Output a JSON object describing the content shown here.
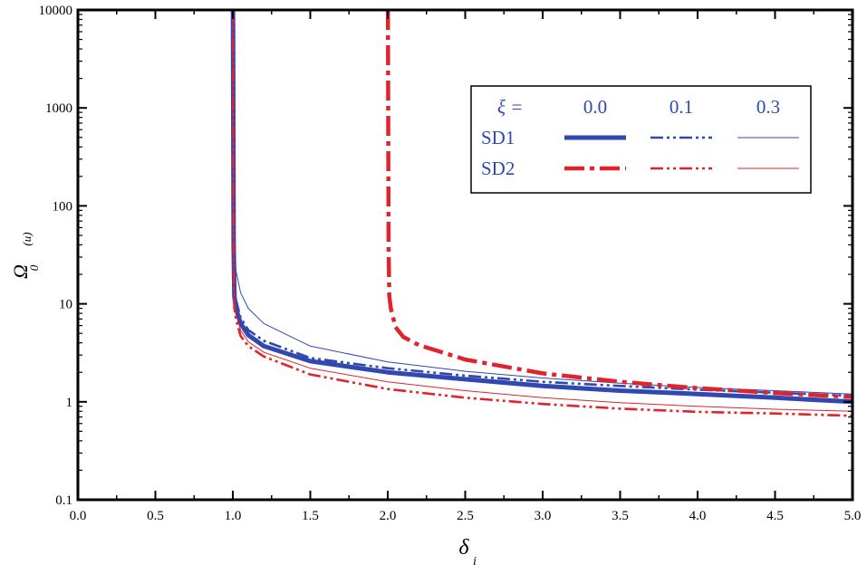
{
  "chart_data": {
    "type": "line",
    "xlabel": "δ",
    "xlabel_sub": "i",
    "ylabel": "Ω",
    "ylabel_sub": "0",
    "ylabel_sup": "(u)",
    "xlim": [
      0.0,
      5.0
    ],
    "ylim": [
      0.1,
      10000
    ],
    "yscale": "log",
    "grid": false,
    "legend_position": "top-right",
    "x_tick_labels": [
      "0.0",
      "0.5",
      "1.0",
      "1.5",
      "2.0",
      "2.5",
      "3.0",
      "3.5",
      "4.0",
      "4.5",
      "5.0"
    ],
    "y_tick_labels": [
      "0.1",
      "1",
      "10",
      "100",
      "1000",
      "10000"
    ],
    "legend": {
      "header_label": "ξ =",
      "columns": [
        "0.0",
        "0.1",
        "0.3"
      ],
      "rows": [
        "SD1",
        "SD2"
      ]
    },
    "colors": {
      "SD1": "#3048b0",
      "SD2": "#e0242c"
    },
    "series": [
      {
        "group": "SD1",
        "xi": "0.0",
        "style": "solid-thick",
        "x": [
          1.001,
          1.005,
          1.01,
          1.02,
          1.05,
          1.1,
          1.2,
          1.5,
          2.0,
          2.5,
          3.0,
          3.5,
          4.0,
          4.5,
          5.0
        ],
        "y": [
          10000,
          40,
          12,
          9,
          6.3,
          4.8,
          3.7,
          2.6,
          2.0,
          1.7,
          1.45,
          1.3,
          1.2,
          1.1,
          1.0
        ]
      },
      {
        "group": "SD1",
        "xi": "0.1",
        "style": "dash-dot-dot",
        "x": [
          1.001,
          1.005,
          1.01,
          1.02,
          1.05,
          1.1,
          1.2,
          1.5,
          2.0,
          2.5,
          3.0,
          3.5,
          4.0,
          4.5,
          5.0
        ],
        "y": [
          10000,
          60,
          16,
          11,
          7.2,
          5.4,
          4.2,
          2.8,
          2.2,
          1.85,
          1.6,
          1.45,
          1.33,
          1.24,
          1.15
        ]
      },
      {
        "group": "SD1",
        "xi": "0.3",
        "style": "thin",
        "x": [
          1.001,
          1.005,
          1.01,
          1.02,
          1.05,
          1.1,
          1.2,
          1.5,
          2.0,
          2.5,
          3.0,
          3.5,
          4.0,
          4.5,
          5.0
        ],
        "y": [
          10000,
          200,
          40,
          22,
          13,
          9,
          6.3,
          3.7,
          2.55,
          2.05,
          1.75,
          1.55,
          1.4,
          1.3,
          1.2
        ]
      },
      {
        "group": "SD2",
        "xi": "0.0",
        "style": "dash-dot-thick",
        "x": [
          2.001,
          2.005,
          2.01,
          2.02,
          2.05,
          2.1,
          2.2,
          2.5,
          3.0,
          3.5,
          4.0,
          4.5,
          5.0
        ],
        "y": [
          10000,
          40,
          12,
          9,
          5.8,
          4.6,
          3.8,
          2.7,
          1.95,
          1.6,
          1.38,
          1.23,
          1.12
        ]
      },
      {
        "group": "SD2",
        "xi": "0.1",
        "style": "dash-dot-dot",
        "x": [
          1.001,
          1.005,
          1.01,
          1.02,
          1.05,
          1.1,
          1.2,
          1.5,
          2.0,
          2.5,
          3.0,
          3.5,
          4.0,
          4.5,
          5.0
        ],
        "y": [
          10000,
          30,
          9,
          7,
          4.7,
          3.7,
          2.9,
          1.9,
          1.35,
          1.1,
          0.95,
          0.85,
          0.79,
          0.76,
          0.72
        ]
      },
      {
        "group": "SD2",
        "xi": "0.3",
        "style": "thin",
        "x": [
          1.001,
          1.005,
          1.01,
          1.02,
          1.05,
          1.1,
          1.2,
          1.5,
          2.0,
          2.5,
          3.0,
          3.5,
          4.0,
          4.5,
          5.0
        ],
        "y": [
          10000,
          35,
          10,
          7.8,
          5.4,
          4.1,
          3.2,
          2.2,
          1.6,
          1.3,
          1.1,
          0.98,
          0.9,
          0.84,
          0.8
        ]
      }
    ]
  }
}
